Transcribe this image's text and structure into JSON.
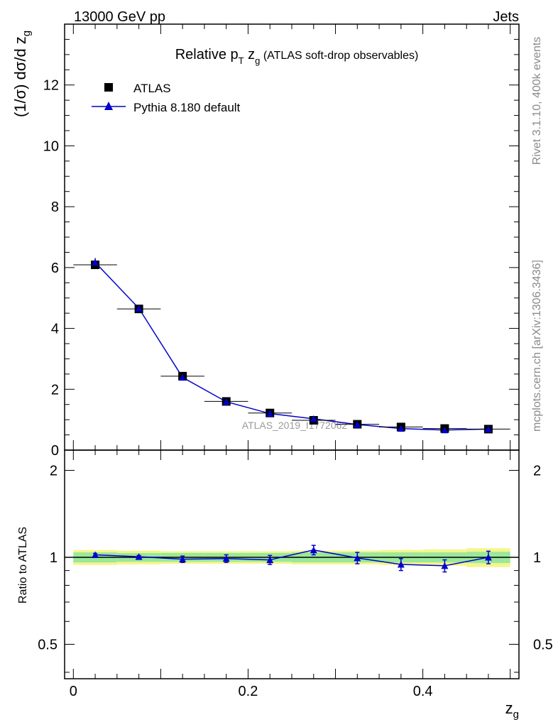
{
  "header": {
    "energy_label": "13000 GeV pp",
    "process_label": "Jets"
  },
  "side_labels": {
    "rivet": "Rivet 3.1.10,  400k events",
    "mcplots": "mcplots.cern.ch [arXiv:1306.3436]"
  },
  "chart_data": [
    {
      "type": "scatter",
      "title": "Relative p_T z_g (ATLAS soft-drop observables)",
      "title_parts": {
        "main": "Relative p",
        "sub1": "T",
        "mid": " z",
        "sub2": "g",
        "rest": " (ATLAS soft-drop observables)"
      },
      "ylabel": "(1/σ) dσ/d z_g",
      "ylabel_parts": {
        "main": "(1/σ) dσ/d z",
        "sub": "g"
      },
      "xlabel": "z_g",
      "xlabel_parts": {
        "main": "z",
        "sub": "g"
      },
      "xlim": [
        -0.01,
        0.51
      ],
      "ylim": [
        0,
        14
      ],
      "yticks": [
        0,
        2,
        4,
        6,
        8,
        10,
        12
      ],
      "yticklabels": [
        "0",
        "2",
        "4",
        "6",
        "8",
        "10",
        "12"
      ],
      "legend_placement": "top-left",
      "watermark": "ATLAS_2019_I1772062",
      "x": [
        0.025,
        0.075,
        0.125,
        0.175,
        0.225,
        0.275,
        0.325,
        0.375,
        0.425,
        0.475
      ],
      "series": [
        {
          "name": "ATLAS",
          "marker": "square",
          "color": "#000000",
          "values": [
            6.09,
            4.64,
            2.43,
            1.6,
            1.22,
            0.98,
            0.85,
            0.76,
            0.71,
            0.69
          ],
          "errors": [
            0.06,
            0.05,
            0.05,
            0.04,
            0.04,
            0.04,
            0.04,
            0.04,
            0.04,
            0.04
          ]
        },
        {
          "name": "Pythia 8.180 default",
          "marker": "triangle",
          "color": "#0000cc",
          "values": [
            6.17,
            4.66,
            2.39,
            1.59,
            1.2,
            1.03,
            0.84,
            0.71,
            0.66,
            0.69
          ],
          "errors": [
            0.14,
            0.08,
            0.06,
            0.04,
            0.04,
            0.04,
            0.03,
            0.03,
            0.03,
            0.03
          ]
        }
      ]
    },
    {
      "type": "scatter",
      "ylabel": "Ratio to ATLAS",
      "xlabel": "z_g",
      "xlim": [
        -0.01,
        0.51
      ],
      "ylim": [
        0.38,
        2.35
      ],
      "log_y": true,
      "xticks": [
        0,
        0.2,
        0.4
      ],
      "xticklabels": [
        "0",
        "0.2",
        "0.4"
      ],
      "yticks": [
        0.5,
        1,
        2
      ],
      "yticklabels": [
        "0.5",
        "1",
        "2"
      ],
      "reference_line": 1,
      "band_inner_color": "#9be79b",
      "band_outer_color": "#f5f58c",
      "band_inner": [
        0.04,
        0.035,
        0.035,
        0.035,
        0.035,
        0.04,
        0.04,
        0.04,
        0.04,
        0.045
      ],
      "band_outer": [
        0.06,
        0.055,
        0.05,
        0.05,
        0.05,
        0.055,
        0.055,
        0.06,
        0.065,
        0.075
      ],
      "series": [
        {
          "name": "Pythia 8.180 default",
          "color": "#0000cc",
          "values": [
            1.02,
            1.005,
            0.985,
            0.99,
            0.98,
            1.06,
            0.995,
            0.945,
            0.935,
            1.0
          ],
          "errors": [
            0.012,
            0.01,
            0.025,
            0.03,
            0.035,
            0.04,
            0.045,
            0.045,
            0.045,
            0.05
          ]
        }
      ]
    }
  ]
}
